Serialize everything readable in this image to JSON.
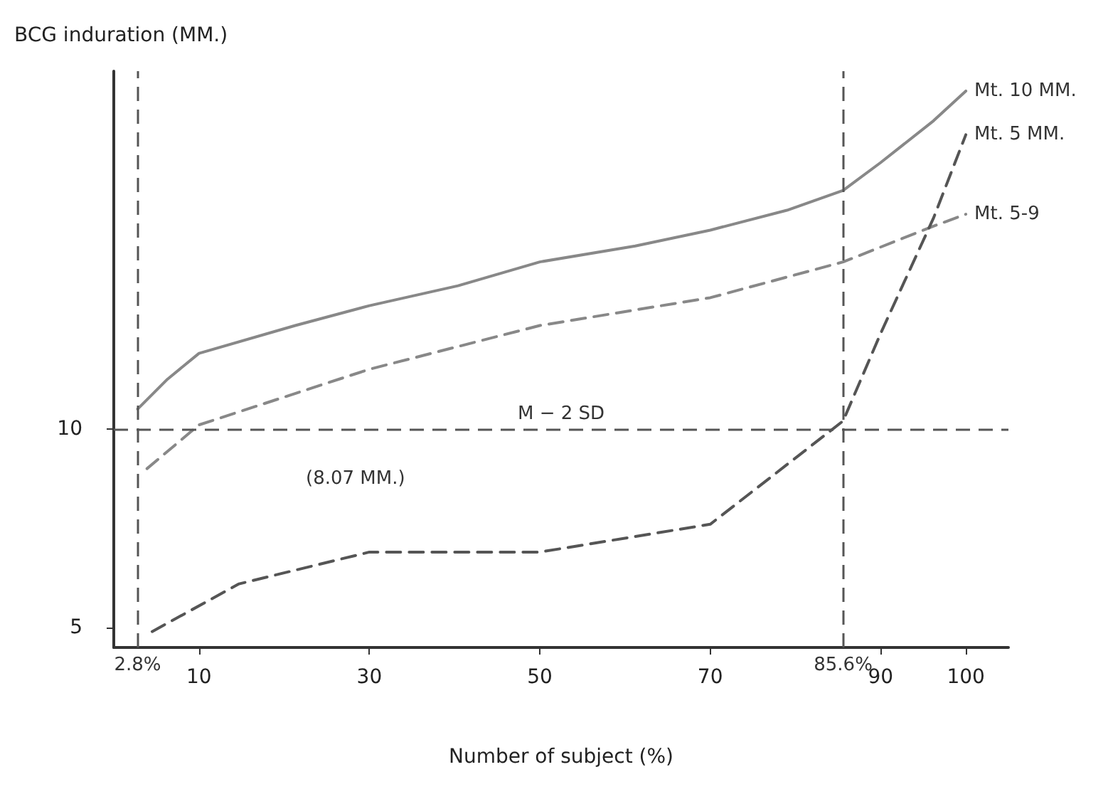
{
  "chart_data": {
    "type": "line",
    "xlabel": "Number of subject (%)",
    "ylabel": "BCG induration (MM.)",
    "xlim": [
      0,
      105
    ],
    "xticks": [
      10,
      30,
      50,
      70,
      90,
      100
    ],
    "ylim": [
      4.5,
      19
    ],
    "yticks": [
      5,
      10
    ],
    "grid": false,
    "legend": false,
    "marker": "none",
    "series": [
      {
        "name": "Mt. 10 MM.",
        "color": "#888888",
        "line_style": "solid",
        "x": [
          2.8,
          6.3,
          10,
          21.3,
          30,
          40.4,
          50,
          61.2,
          70,
          79,
          85.6,
          90,
          96.2,
          100
        ],
        "values": [
          10.5,
          11.25,
          11.9,
          12.6,
          13.1,
          13.6,
          14.2,
          14.6,
          15.0,
          15.5,
          16.0,
          16.7,
          17.75,
          18.5
        ]
      },
      {
        "name": "Mt. 5-9",
        "color": "#888888",
        "line_style": "dashed",
        "x": [
          3.9,
          10,
          30,
          50,
          70,
          85.6,
          96.2,
          100
        ],
        "values": [
          9.0,
          10.1,
          11.5,
          12.6,
          13.3,
          14.2,
          15.1,
          15.4
        ]
      },
      {
        "name": "Mt. 5 MM.",
        "color": "#555555",
        "line_style": "dashed",
        "x": [
          4.5,
          14.7,
          30,
          50,
          70,
          85.6,
          90,
          96.2,
          100
        ],
        "values": [
          4.9,
          6.1,
          6.9,
          6.9,
          7.6,
          10.2,
          12.4,
          15.3,
          17.4
        ]
      }
    ],
    "ref_lines": [
      {
        "axis": "y",
        "value": 10,
        "label": "M − 2 SD",
        "color": "#555555",
        "line_style": "dashed"
      },
      {
        "axis": "x",
        "value": 2.8,
        "label": "2.8%",
        "color": "#555555",
        "line_style": "dashed"
      },
      {
        "axis": "x",
        "value": 85.6,
        "label": "85.6%",
        "color": "#555555",
        "line_style": "dashed"
      }
    ],
    "annotations": [
      "(8.07 MM.)"
    ]
  }
}
